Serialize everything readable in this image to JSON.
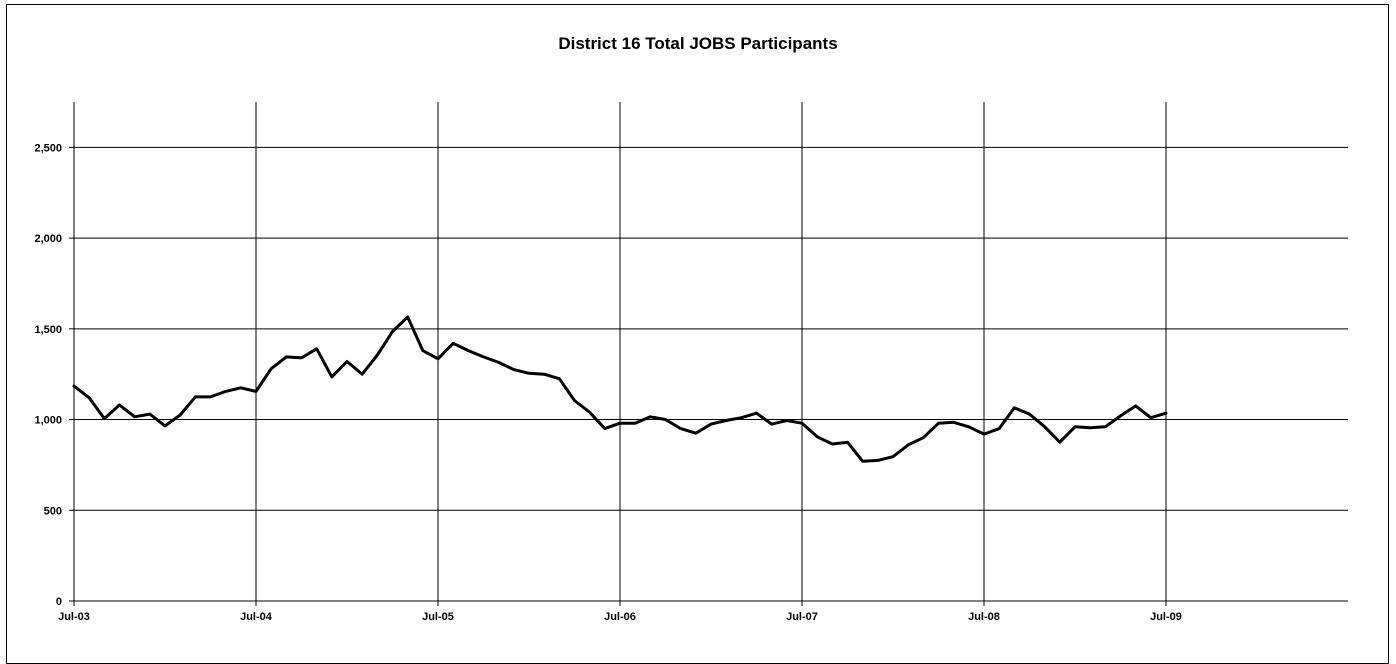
{
  "chart_data": {
    "type": "line",
    "title": "District 16 Total JOBS Participants",
    "xlabel": "",
    "ylabel": "",
    "ylim": [
      0,
      2750
    ],
    "yticks": [
      0,
      500,
      1000,
      1500,
      2000,
      2500
    ],
    "ytick_labels": [
      "0",
      "500",
      "1,000",
      "1,500",
      "2,000",
      "2,500"
    ],
    "xticks": [
      "2003-07",
      "2004-07",
      "2005-07",
      "2006-07",
      "2007-07",
      "2008-07",
      "2009-07"
    ],
    "xtick_labels": [
      "Jul-03",
      "Jul-04",
      "Jul-05",
      "Jul-06",
      "Jul-07",
      "Jul-08",
      "Jul-09"
    ],
    "xlim": [
      "2003-07",
      "2010-06"
    ],
    "grid": true,
    "legend": "none",
    "series": [
      {
        "color": "#000000",
        "x": [
          "2003-07",
          "2003-08",
          "2003-09",
          "2003-10",
          "2003-11",
          "2003-12",
          "2004-01",
          "2004-02",
          "2004-03",
          "2004-04",
          "2004-05",
          "2004-06",
          "2004-07",
          "2004-08",
          "2004-09",
          "2004-10",
          "2004-11",
          "2004-12",
          "2005-01",
          "2005-02",
          "2005-03",
          "2005-04",
          "2005-05",
          "2005-06",
          "2005-07",
          "2005-08",
          "2005-09",
          "2005-10",
          "2005-11",
          "2005-12",
          "2006-01",
          "2006-02",
          "2006-03",
          "2006-04",
          "2006-05",
          "2006-06",
          "2006-07",
          "2006-08",
          "2006-09",
          "2006-10",
          "2006-11",
          "2006-12",
          "2007-01",
          "2007-02",
          "2007-03",
          "2007-04",
          "2007-05",
          "2007-06",
          "2007-07",
          "2007-08",
          "2007-09",
          "2007-10",
          "2007-11",
          "2007-12",
          "2008-01",
          "2008-02",
          "2008-03",
          "2008-04",
          "2008-05",
          "2008-06",
          "2008-07",
          "2008-08",
          "2008-09",
          "2008-10",
          "2008-11",
          "2008-12",
          "2009-01",
          "2009-02",
          "2009-03",
          "2009-04",
          "2009-05",
          "2009-06",
          "2009-07"
        ],
        "values": [
          1185,
          1120,
          1005,
          1080,
          1015,
          1030,
          965,
          1025,
          1125,
          1125,
          1155,
          1175,
          1155,
          1280,
          1345,
          1340,
          1390,
          1235,
          1320,
          1250,
          1355,
          1485,
          1565,
          1380,
          1335,
          1420,
          1380,
          1345,
          1315,
          1275,
          1255,
          1250,
          1225,
          1105,
          1040,
          950,
          980,
          980,
          1015,
          1000,
          950,
          925,
          975,
          995,
          1010,
          1035,
          975,
          995,
          980,
          905,
          865,
          875,
          770,
          775,
          795,
          860,
          900,
          980,
          985,
          960,
          920,
          950,
          1065,
          1030,
          960,
          875,
          960,
          955,
          960,
          1020,
          1075,
          1010,
          1035
        ]
      }
    ]
  }
}
